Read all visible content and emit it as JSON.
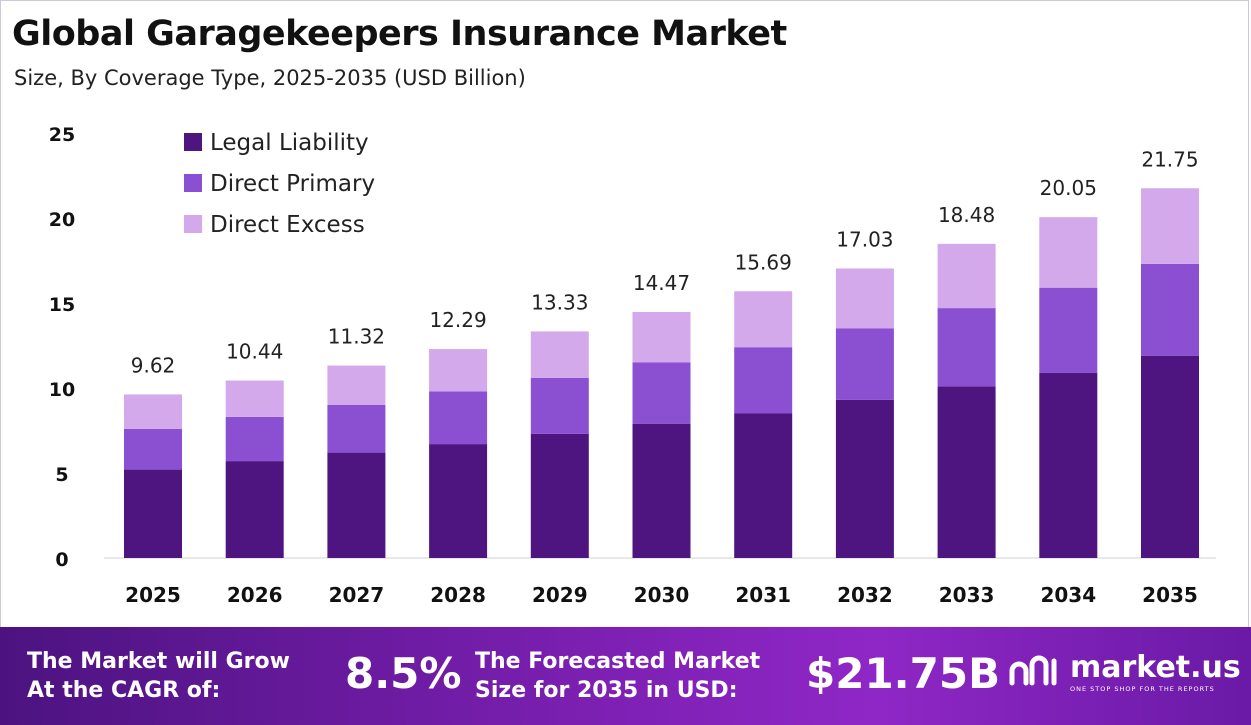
{
  "header": {
    "title": "Global Garagekeepers Insurance Market",
    "subtitle": "Size, By Coverage Type, 2025-2035 (USD Billion)"
  },
  "chart_data": {
    "type": "bar",
    "stacked": true,
    "categories": [
      "2025",
      "2026",
      "2027",
      "2028",
      "2029",
      "2030",
      "2031",
      "2032",
      "2033",
      "2034",
      "2035"
    ],
    "series": [
      {
        "name": "Legal Liability",
        "color": "#4e1580",
        "values": [
          5.2,
          5.7,
          6.2,
          6.7,
          7.3,
          7.9,
          8.5,
          9.3,
          10.1,
          10.9,
          11.9
        ]
      },
      {
        "name": "Direct Primary",
        "color": "#8b4fd1",
        "values": [
          2.4,
          2.6,
          2.8,
          3.1,
          3.3,
          3.6,
          3.9,
          4.2,
          4.6,
          5.0,
          5.4
        ]
      },
      {
        "name": "Direct Excess",
        "color": "#d3a9ec",
        "values": [
          2.02,
          2.14,
          2.32,
          2.49,
          2.73,
          2.97,
          3.29,
          3.53,
          3.78,
          4.15,
          4.45
        ]
      }
    ],
    "totals": [
      "9.62",
      "10.44",
      "11.32",
      "12.29",
      "13.33",
      "14.47",
      "15.69",
      "17.03",
      "18.48",
      "20.05",
      "21.75"
    ],
    "ylim": [
      0,
      25
    ],
    "yticks": [
      "0",
      "5",
      "10",
      "15",
      "20",
      "25"
    ],
    "legend_position": "top-left",
    "grid": false
  },
  "footer": {
    "cagr_label_line1": "The Market will Grow",
    "cagr_label_line2": "At the CAGR of:",
    "cagr_value": "8.5%",
    "forecast_label_line1": "The Forecasted Market",
    "forecast_label_line2": "Size for 2035 in USD:",
    "forecast_value": "$21.75B",
    "brand_name": "market.us",
    "brand_tagline": "ONE STOP SHOP FOR THE REPORTS",
    "brand_icon": "marketus-logo-icon"
  }
}
